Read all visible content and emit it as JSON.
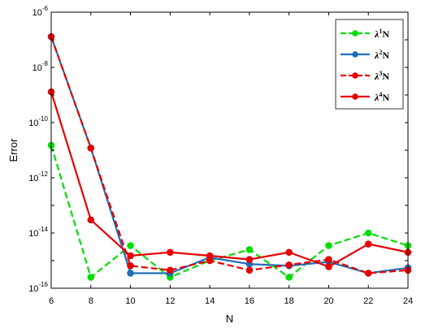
{
  "chart_data": {
    "type": "line",
    "title": "",
    "xlabel": "N",
    "ylabel": "Error",
    "xlim": [
      6,
      24
    ],
    "ylim": [
      1e-16,
      1e-06
    ],
    "yscale": "log",
    "grid": false,
    "legend_position": "top-right",
    "x": [
      6,
      8,
      10,
      12,
      14,
      16,
      18,
      20,
      22,
      24
    ],
    "x_ticks": [
      "6",
      "8",
      "10",
      "12",
      "14",
      "16",
      "18",
      "20",
      "22",
      "24"
    ],
    "y_ticks": [
      {
        "base": "10",
        "exp": "-16",
        "value": 1e-16
      },
      {
        "base": "10",
        "exp": "-14",
        "value": 1e-14
      },
      {
        "base": "10",
        "exp": "-12",
        "value": 1e-12
      },
      {
        "base": "10",
        "exp": "-10",
        "value": 1e-10
      },
      {
        "base": "10",
        "exp": "-8",
        "value": 1e-08
      },
      {
        "base": "10",
        "exp": "-6",
        "value": 1e-06
      }
    ],
    "series": [
      {
        "name": "λ¹N",
        "lambda": "λ",
        "sup": "1",
        "suffix": "N",
        "color": "#00dd00",
        "dash": "dashed",
        "values": [
          1.5e-11,
          2.5e-16,
          3.5e-15,
          2.5e-16,
          1e-15,
          2.5e-15,
          2.5e-16,
          3.5e-15,
          1e-14,
          3.5e-15
        ]
      },
      {
        "name": "λ²N",
        "lambda": "λ",
        "sup": "2",
        "suffix": "N",
        "color": "#1f6fb5",
        "dash": "solid",
        "values": [
          1.3e-07,
          1.2e-11,
          3.5e-16,
          3.5e-16,
          1.3e-15,
          7.5e-16,
          6.5e-16,
          9e-16,
          3.5e-16,
          5.5e-16
        ]
      },
      {
        "name": "λ³N",
        "lambda": "λ",
        "sup": "3",
        "suffix": "N",
        "color": "#e60000",
        "dash": "dashed",
        "values": [
          1.3e-07,
          1.2e-11,
          6.5e-16,
          4.5e-16,
          1e-15,
          4.5e-16,
          7e-16,
          1.1e-15,
          3.5e-16,
          4.5e-16
        ]
      },
      {
        "name": "λ⁴N",
        "lambda": "λ",
        "sup": "4",
        "suffix": "N",
        "color": "#e60000",
        "dash": "solid",
        "values": [
          1.3e-09,
          3e-14,
          1.5e-15,
          2e-15,
          1.5e-15,
          1.1e-15,
          2e-15,
          6e-16,
          4e-15,
          2e-15
        ]
      }
    ]
  }
}
